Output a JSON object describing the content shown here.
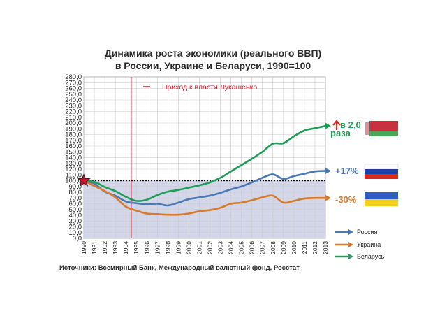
{
  "chart_data": {
    "type": "line",
    "title_lines": [
      "Динамика роста экономики (реального ВВП)",
      "в России, Украине и Беларуси, 1990=100"
    ],
    "x": [
      1990,
      1991,
      1992,
      1993,
      1994,
      1995,
      1996,
      1997,
      1998,
      1999,
      2000,
      2001,
      2002,
      2003,
      2004,
      2005,
      2006,
      2007,
      2008,
      2009,
      2010,
      2011,
      2012,
      2013
    ],
    "xlim": [
      1990,
      2013
    ],
    "ylim": [
      0,
      280
    ],
    "ytick_step": 10,
    "ytick_decimals": 1,
    "baseline": 100,
    "series": [
      {
        "name": "Россия",
        "color": "#4a7ab5",
        "values": [
          100,
          95,
          81,
          74,
          64,
          61,
          59,
          60,
          57,
          62,
          68,
          71,
          74,
          79,
          85,
          90,
          97,
          105,
          111,
          103,
          108,
          112,
          116,
          117
        ]
      },
      {
        "name": "Украина",
        "color": "#d97a2b",
        "values": [
          100,
          91,
          82,
          71,
          55,
          48,
          43,
          42,
          41,
          41,
          43,
          47,
          49,
          53,
          60,
          62,
          66,
          71,
          74,
          62,
          65,
          69,
          70,
          70
        ]
      },
      {
        "name": "Беларусь",
        "color": "#1f9e57",
        "values": [
          100,
          98,
          89,
          82,
          72,
          65,
          67,
          75,
          81,
          84,
          88,
          92,
          97,
          105,
          116,
          127,
          138,
          150,
          164,
          165,
          177,
          187,
          191,
          195
        ]
      }
    ],
    "event": {
      "year": 1994.5,
      "label": "Приход к власти Лукашенко",
      "color": "#cc1f2f"
    },
    "end_labels": {
      "belarus_line1": "в 2,0",
      "belarus_line2": "раза",
      "russia": "+17%",
      "ukraine": "-30%"
    },
    "legend_placement": "bottom-right",
    "grid": true
  },
  "source_text": "Источники: Всемирный Банк, Международный валютный фонд, Росстат",
  "colors": {
    "plot_bg": "#ffffff",
    "below_baseline_bg": "#d3d6e8",
    "grid": "#c9c9c9",
    "flag_ru": [
      "#ffffff",
      "#1c3fa8",
      "#d52b1e"
    ],
    "flag_ua": [
      "#2a5fc4",
      "#f5cf1a"
    ],
    "flag_by": [
      "#c8313e",
      "#4aa657",
      "#ffffff"
    ]
  }
}
